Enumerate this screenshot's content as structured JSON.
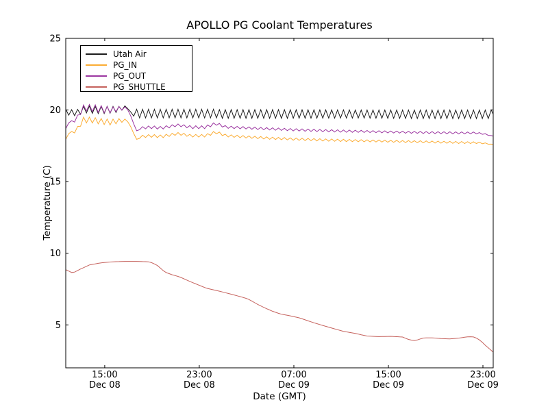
{
  "chart_data": {
    "type": "line",
    "title": "APOLLO PG Coolant Temperatures",
    "xlabel": "Date (GMT)",
    "ylabel": "Temperature (C)",
    "x_unit": "hours since Dec 08 00:00 GMT",
    "xlim": [
      11.7,
      47.87
    ],
    "ylim": [
      2,
      25
    ],
    "grid": false,
    "legend_position": "upper left",
    "background_color": "#ffffff",
    "axis_color": "#000000",
    "xticks": [
      {
        "t": 15,
        "time": "15:00",
        "date": "Dec 08"
      },
      {
        "t": 23,
        "time": "23:00",
        "date": "Dec 08"
      },
      {
        "t": 31,
        "time": "07:00",
        "date": "Dec 09"
      },
      {
        "t": 39,
        "time": "15:00",
        "date": "Dec 09"
      },
      {
        "t": 47,
        "time": "23:00",
        "date": "Dec 09"
      }
    ],
    "yticks": [
      {
        "v": 5,
        "label": "5"
      },
      {
        "v": 10,
        "label": "10"
      },
      {
        "v": 15,
        "label": "15"
      },
      {
        "v": 20,
        "label": "20"
      },
      {
        "v": 25,
        "label": "25"
      }
    ],
    "series": [
      {
        "name": "Utah Air",
        "color": "#1c1c1c",
        "osc_period_h": 0.5,
        "keypoints_format": [
          "t_hours",
          "mean_temp_C",
          "osc_amplitude_C"
        ],
        "keypoints": [
          [
            11.7,
            19.85,
            0.2
          ],
          [
            12.6,
            19.8,
            0.2
          ],
          [
            13.3,
            20.05,
            0.25
          ],
          [
            14.2,
            20.0,
            0.25
          ],
          [
            15.2,
            20.0,
            0.25
          ],
          [
            16.2,
            20.05,
            0.2
          ],
          [
            16.85,
            20.25,
            0.05
          ],
          [
            17.4,
            19.6,
            0
          ],
          [
            17.7,
            19.75,
            0.3
          ],
          [
            24.2,
            19.75,
            0.3
          ],
          [
            24.45,
            19.95,
            0.5
          ],
          [
            24.7,
            19.72,
            0.3
          ],
          [
            30.0,
            19.72,
            0.3
          ],
          [
            36.0,
            19.72,
            0.28
          ],
          [
            42.0,
            19.7,
            0.3
          ],
          [
            47.87,
            19.7,
            0.3
          ]
        ]
      },
      {
        "name": "PG_IN",
        "color": "#fbac33",
        "osc_period_h": 0.5,
        "keypoints_format": [
          "t_hours",
          "mean_temp_C",
          "osc_amplitude_C"
        ],
        "keypoints": [
          [
            11.7,
            17.95,
            0
          ],
          [
            12.05,
            18.55,
            0.05
          ],
          [
            12.35,
            18.35,
            0.05
          ],
          [
            13.2,
            19.3,
            0.2
          ],
          [
            13.9,
            19.3,
            0.2
          ],
          [
            14.7,
            19.2,
            0.2
          ],
          [
            15.5,
            19.15,
            0.2
          ],
          [
            16.3,
            19.25,
            0.15
          ],
          [
            16.9,
            19.3,
            0.05
          ],
          [
            17.7,
            17.95,
            0
          ],
          [
            18.1,
            18.15,
            0.08
          ],
          [
            18.9,
            18.2,
            0.1
          ],
          [
            19.8,
            18.15,
            0.1
          ],
          [
            21.2,
            18.35,
            0.08
          ],
          [
            22.3,
            18.2,
            0.09
          ],
          [
            23.5,
            18.2,
            0.09
          ],
          [
            24.4,
            18.45,
            0.1
          ],
          [
            25.3,
            18.2,
            0.08
          ],
          [
            27.0,
            18.12,
            0.08
          ],
          [
            29.0,
            18.03,
            0.08
          ],
          [
            31.0,
            17.97,
            0.08
          ],
          [
            33.0,
            17.92,
            0.08
          ],
          [
            35.0,
            17.88,
            0.08
          ],
          [
            37.0,
            17.85,
            0.07
          ],
          [
            39.0,
            17.82,
            0.07
          ],
          [
            41.0,
            17.79,
            0.07
          ],
          [
            43.0,
            17.76,
            0.07
          ],
          [
            45.0,
            17.73,
            0.07
          ],
          [
            46.4,
            17.72,
            0.06
          ],
          [
            47.1,
            17.68,
            0.04
          ],
          [
            47.6,
            17.62,
            0.02
          ],
          [
            47.87,
            17.58,
            0
          ]
        ]
      },
      {
        "name": "PG_OUT",
        "color": "#9b35a0",
        "osc_period_h": 0.5,
        "keypoints_format": [
          "t_hours",
          "mean_temp_C",
          "osc_amplitude_C"
        ],
        "keypoints": [
          [
            11.7,
            18.7,
            0
          ],
          [
            12.05,
            19.3,
            0.05
          ],
          [
            12.35,
            19.1,
            0.05
          ],
          [
            13.2,
            20.15,
            0.2
          ],
          [
            13.9,
            20.15,
            0.25
          ],
          [
            14.7,
            20.05,
            0.25
          ],
          [
            15.5,
            20.0,
            0.2
          ],
          [
            16.3,
            20.1,
            0.15
          ],
          [
            16.9,
            20.15,
            0.05
          ],
          [
            17.7,
            18.55,
            0
          ],
          [
            18.1,
            18.75,
            0.08
          ],
          [
            18.9,
            18.8,
            0.1
          ],
          [
            19.8,
            18.75,
            0.1
          ],
          [
            21.2,
            18.95,
            0.08
          ],
          [
            22.3,
            18.8,
            0.1
          ],
          [
            23.5,
            18.8,
            0.1
          ],
          [
            24.4,
            19.05,
            0.1
          ],
          [
            25.3,
            18.8,
            0.08
          ],
          [
            27.0,
            18.75,
            0.08
          ],
          [
            29.0,
            18.68,
            0.08
          ],
          [
            31.0,
            18.62,
            0.08
          ],
          [
            33.0,
            18.57,
            0.08
          ],
          [
            35.0,
            18.53,
            0.08
          ],
          [
            37.0,
            18.5,
            0.07
          ],
          [
            39.0,
            18.47,
            0.07
          ],
          [
            41.0,
            18.44,
            0.07
          ],
          [
            43.0,
            18.42,
            0.07
          ],
          [
            45.0,
            18.4,
            0.07
          ],
          [
            46.4,
            18.4,
            0.06
          ],
          [
            47.1,
            18.33,
            0.04
          ],
          [
            47.6,
            18.22,
            0.02
          ],
          [
            47.87,
            18.17,
            0
          ]
        ]
      },
      {
        "name": "PG_SHUTTLE",
        "color": "#c5615c",
        "osc_period_h": 0,
        "keypoints_format": [
          "t_hours",
          "temp_C"
        ],
        "keypoints": [
          [
            11.7,
            8.85
          ],
          [
            12.3,
            8.62
          ],
          [
            12.9,
            8.88
          ],
          [
            13.7,
            9.18
          ],
          [
            14.6,
            9.32
          ],
          [
            15.6,
            9.4
          ],
          [
            16.6,
            9.43
          ],
          [
            17.8,
            9.43
          ],
          [
            18.8,
            9.4
          ],
          [
            19.4,
            9.18
          ],
          [
            20.1,
            8.68
          ],
          [
            20.7,
            8.5
          ],
          [
            21.3,
            8.36
          ],
          [
            22.4,
            7.96
          ],
          [
            23.6,
            7.56
          ],
          [
            24.7,
            7.35
          ],
          [
            25.9,
            7.1
          ],
          [
            27.1,
            6.82
          ],
          [
            27.9,
            6.45
          ],
          [
            28.5,
            6.2
          ],
          [
            29.2,
            5.95
          ],
          [
            29.9,
            5.75
          ],
          [
            30.7,
            5.63
          ],
          [
            31.5,
            5.48
          ],
          [
            32.3,
            5.25
          ],
          [
            33.2,
            5.02
          ],
          [
            34.2,
            4.78
          ],
          [
            35.2,
            4.55
          ],
          [
            36.2,
            4.4
          ],
          [
            37.2,
            4.22
          ],
          [
            38.2,
            4.18
          ],
          [
            39.2,
            4.2
          ],
          [
            40.2,
            4.15
          ],
          [
            40.8,
            3.95
          ],
          [
            41.3,
            3.9
          ],
          [
            41.9,
            4.08
          ],
          [
            42.6,
            4.1
          ],
          [
            43.4,
            4.05
          ],
          [
            44.2,
            4.02
          ],
          [
            45.0,
            4.08
          ],
          [
            45.8,
            4.18
          ],
          [
            46.3,
            4.15
          ],
          [
            46.8,
            3.9
          ],
          [
            47.3,
            3.5
          ],
          [
            47.87,
            3.1
          ]
        ]
      }
    ]
  }
}
